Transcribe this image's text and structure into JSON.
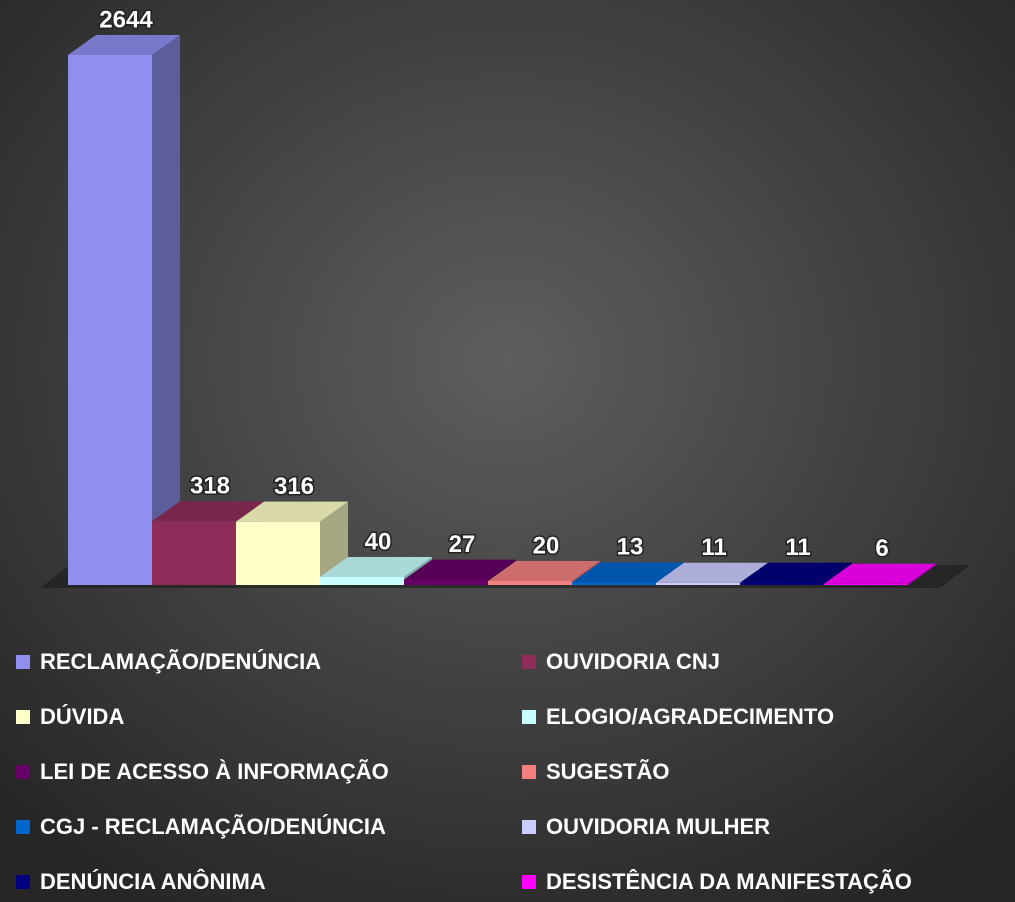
{
  "chart_data": {
    "type": "bar3d",
    "categories": [
      "RECLAMAÇÃO/DENÚNCIA",
      "OUVIDORIA CNJ",
      "DÚVIDA",
      "ELOGIO/AGRADECIMENTO",
      "LEI DE ACESSO À INFORMAÇÃO",
      "SUGESTÃO",
      "CGJ - RECLAMAÇÃO/DENÚNCIA",
      "OUVIDORIA MULHER",
      "DENÚNCIA ANÔNIMA",
      "DESISTÊNCIA DA MANIFESTAÇÃO"
    ],
    "values": [
      2644,
      318,
      316,
      40,
      27,
      20,
      13,
      11,
      11,
      6
    ],
    "colors": [
      "#8f8fef",
      "#8e2d5a",
      "#ffffc8",
      "#c8ffff",
      "#660066",
      "#f28080",
      "#0066cc",
      "#ccccff",
      "#000080",
      "#ff00ff"
    ],
    "legend": "bottom"
  }
}
